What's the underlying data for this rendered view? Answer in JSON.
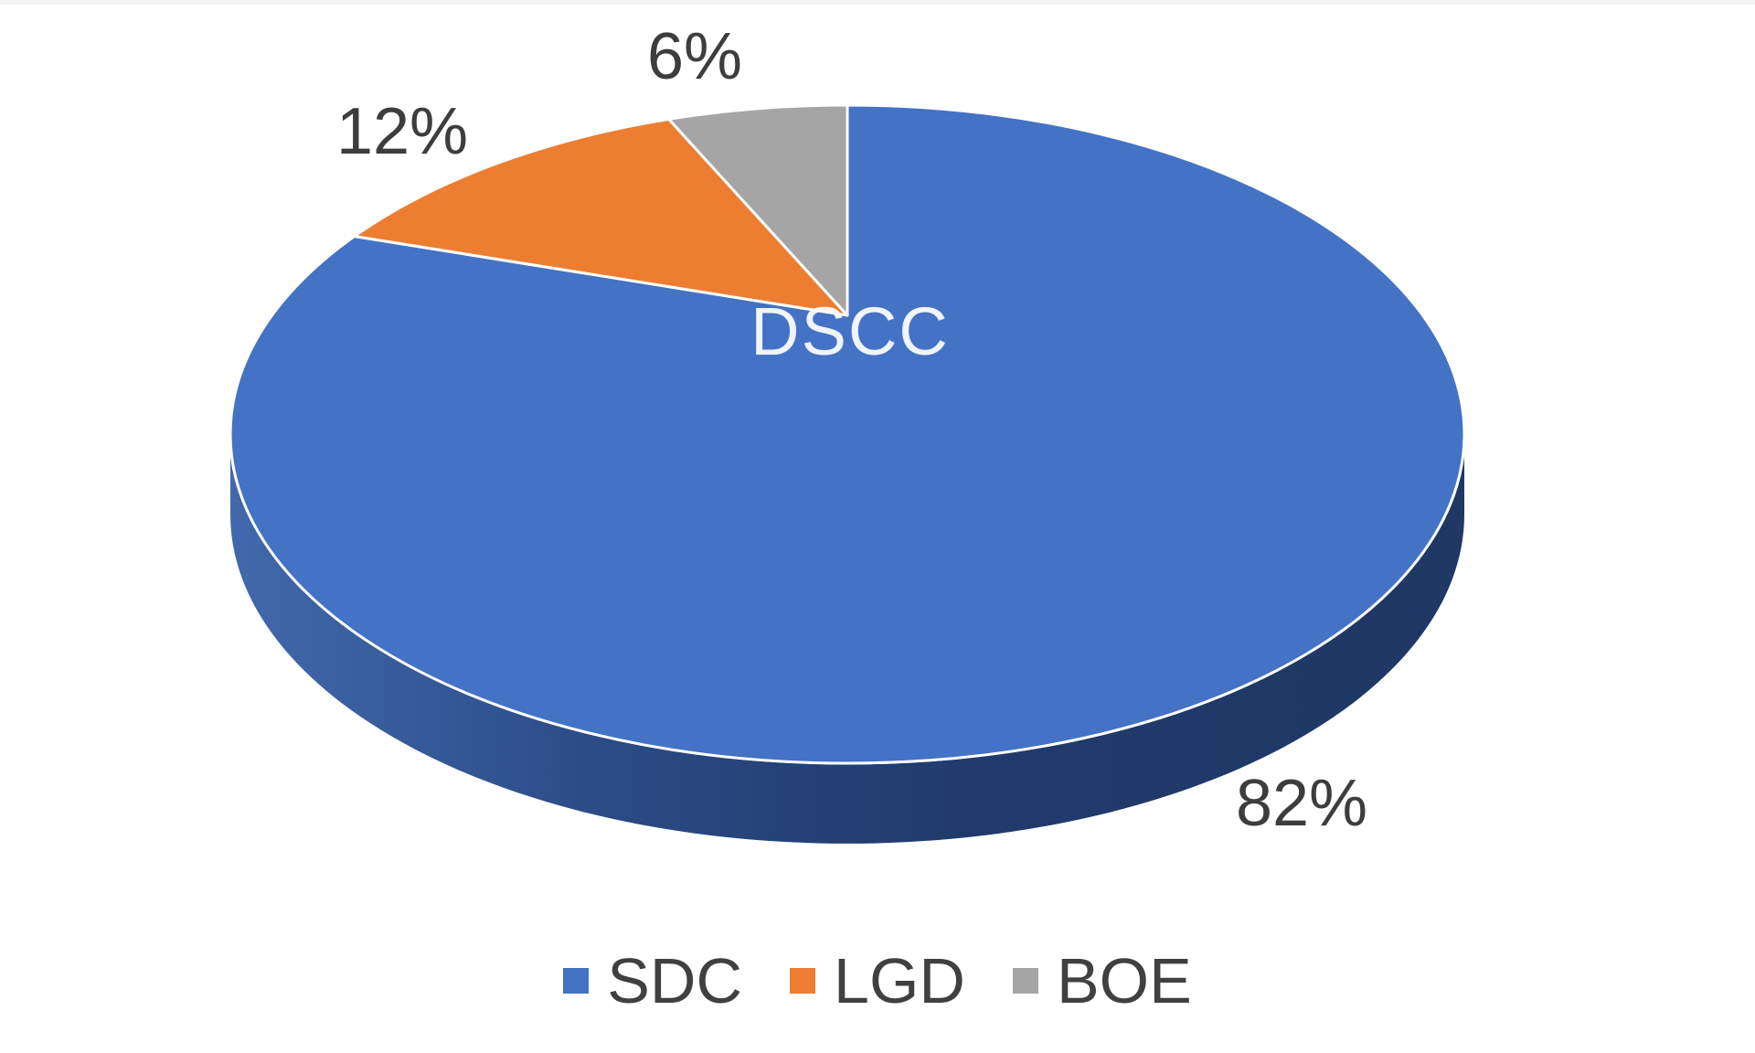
{
  "chart_data": {
    "type": "pie",
    "style": "3d",
    "categories": [
      "SDC",
      "LGD",
      "BOE"
    ],
    "values": [
      82,
      12,
      6
    ],
    "unit": "percent",
    "data_labels": [
      "82%",
      "12%",
      "6%"
    ],
    "watermark": "DSCC",
    "legend_position": "bottom",
    "start_angle_deg": 0,
    "direction": "clockwise",
    "colors": {
      "SDC": "#4472C4",
      "LGD": "#ED7D31",
      "BOE": "#A5A5A5"
    },
    "side_color_dark": "#1F3864",
    "side_color_light": "#4269AC"
  }
}
